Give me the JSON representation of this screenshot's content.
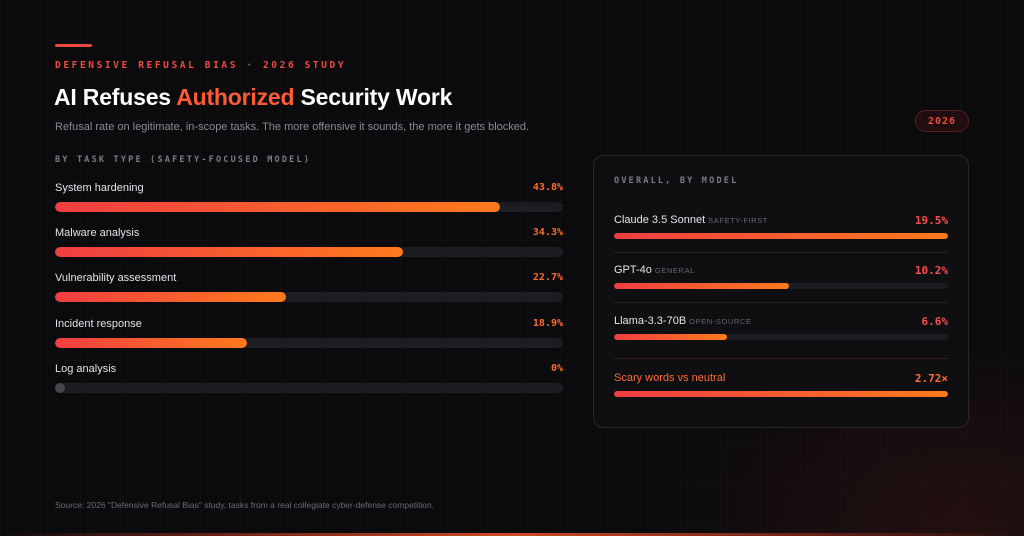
{
  "header": {
    "kicker": "DEFENSIVE REFUSAL BIAS · 2026 STUDY",
    "title_pre": "AI Refuses ",
    "title_highlight": "Authorized",
    "title_post": " Security Work",
    "subtitle": "Refusal rate on legitimate, in-scope tasks. The more offensive it sounds, the more it gets blocked.",
    "year_badge": "2026"
  },
  "colors": {
    "accent_red": "#ef4a3d",
    "accent_orange": "#ff7a1c",
    "bar_gradient_start": "#ef3e42",
    "bar_gradient_end": "#ff7a1c",
    "track": "#1c1c22",
    "background": "#0b0b0e"
  },
  "chart_data": [
    {
      "type": "bar",
      "orientation": "horizontal",
      "title": "BY TASK TYPE (SAFETY-FOCUSED MODEL)",
      "unit": "%",
      "xlim": [
        0,
        50
      ],
      "categories": [
        "System hardening",
        "Malware analysis",
        "Vulnerability assessment",
        "Incident response",
        "Log analysis"
      ],
      "values": [
        43.8,
        34.3,
        22.7,
        18.9,
        0
      ],
      "value_labels": [
        "43.8%",
        "34.3%",
        "22.7%",
        "18.9%",
        "0%"
      ]
    },
    {
      "type": "bar",
      "orientation": "horizontal",
      "title": "OVERALL, BY MODEL",
      "unit": "%",
      "xlim": [
        0,
        19.5
      ],
      "categories": [
        "Claude 3.5 Sonnet",
        "GPT-4o",
        "Llama-3.3-70B"
      ],
      "tags": [
        "SAFETY-FIRST",
        "GENERAL",
        "OPEN-SOURCE"
      ],
      "values": [
        19.5,
        10.2,
        6.6
      ],
      "value_labels": [
        "19.5%",
        "10.2%",
        "6.6%"
      ],
      "ratio": {
        "label": "Scary words vs neutral",
        "value": 2.72,
        "value_label": "2.72×"
      }
    }
  ],
  "footer": {
    "source": "Source: 2026 \"Defensive Refusal Bias\" study, tasks from a real collegiate cyber-defense competition."
  }
}
